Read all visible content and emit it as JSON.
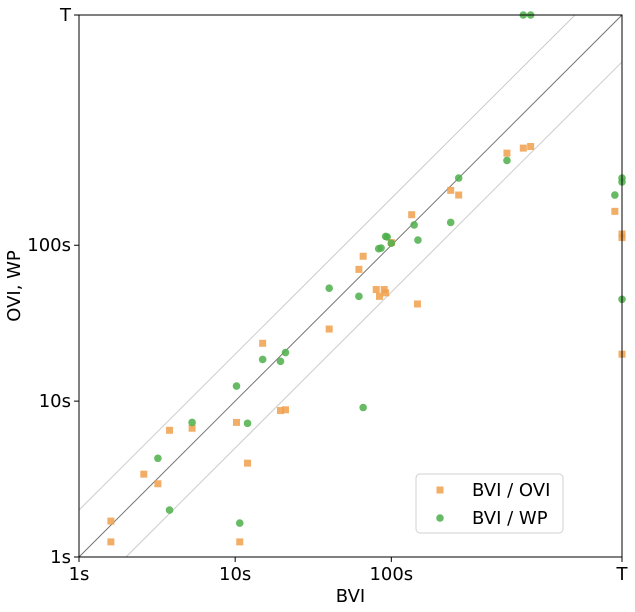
{
  "chart_data": {
    "type": "scatter",
    "xlabel": "BVI",
    "ylabel": "OVI, WP",
    "scale": "log",
    "xlim": [
      1,
      3000
    ],
    "ylim": [
      1,
      3000
    ],
    "x_ticks": [
      {
        "value": 1,
        "label": "1s"
      },
      {
        "value": 10,
        "label": "10s"
      },
      {
        "value": 100,
        "label": "100s"
      },
      {
        "value": 3000,
        "label": "T"
      }
    ],
    "y_ticks": [
      {
        "value": 1,
        "label": "1s"
      },
      {
        "value": 10,
        "label": "10s"
      },
      {
        "value": 100,
        "label": "100s"
      },
      {
        "value": 3000,
        "label": "T"
      }
    ],
    "reference_lines": [
      {
        "factor": 1,
        "color": "#000000",
        "opacity": 0.55
      },
      {
        "factor": 2,
        "color": "#cccccc",
        "opacity": 1
      },
      {
        "factor": 0.5,
        "color": "#cccccc",
        "opacity": 1
      }
    ],
    "legend_position": "lower-right",
    "series": [
      {
        "name": "BVI / OVI",
        "color": "#f0a04b",
        "marker": "square",
        "points": [
          [
            1.6,
            1.7
          ],
          [
            1.6,
            1.25
          ],
          [
            2.6,
            3.4
          ],
          [
            3.2,
            2.95
          ],
          [
            3.8,
            6.5
          ],
          [
            5.3,
            6.7
          ],
          [
            10.2,
            7.3
          ],
          [
            10.7,
            1.25
          ],
          [
            12,
            4.0
          ],
          [
            15,
            23.5
          ],
          [
            19.5,
            8.7
          ],
          [
            21,
            8.8
          ],
          [
            40,
            29
          ],
          [
            62,
            70
          ],
          [
            66,
            85
          ],
          [
            80,
            52
          ],
          [
            84,
            47
          ],
          [
            90,
            52
          ],
          [
            92,
            49.5
          ],
          [
            100,
            104
          ],
          [
            135,
            157
          ],
          [
            147,
            42
          ],
          [
            240,
            225
          ],
          [
            270,
            210
          ],
          [
            550,
            390
          ],
          [
            700,
            420
          ],
          [
            780,
            430
          ],
          [
            2700,
            165
          ],
          [
            3000,
            112
          ],
          [
            3000,
            118
          ],
          [
            3000,
            20
          ]
        ]
      },
      {
        "name": "BVI / WP",
        "color": "#4daf4a",
        "marker": "circle",
        "points": [
          [
            3.2,
            4.3
          ],
          [
            3.8,
            2.0
          ],
          [
            5.3,
            7.3
          ],
          [
            10.2,
            12.5
          ],
          [
            10.7,
            1.65
          ],
          [
            12,
            7.2
          ],
          [
            15,
            18.5
          ],
          [
            19.5,
            18
          ],
          [
            21,
            20.5
          ],
          [
            40,
            53
          ],
          [
            62,
            47
          ],
          [
            66,
            9.1
          ],
          [
            83,
            95
          ],
          [
            86,
            96
          ],
          [
            92,
            114
          ],
          [
            94,
            113
          ],
          [
            100,
            103
          ],
          [
            140,
            135
          ],
          [
            148,
            108
          ],
          [
            240,
            140
          ],
          [
            270,
            270
          ],
          [
            550,
            350
          ],
          [
            700,
            3000
          ],
          [
            780,
            3000
          ],
          [
            2700,
            210
          ],
          [
            3000,
            255
          ],
          [
            3000,
            270
          ],
          [
            3000,
            45
          ]
        ]
      }
    ]
  }
}
